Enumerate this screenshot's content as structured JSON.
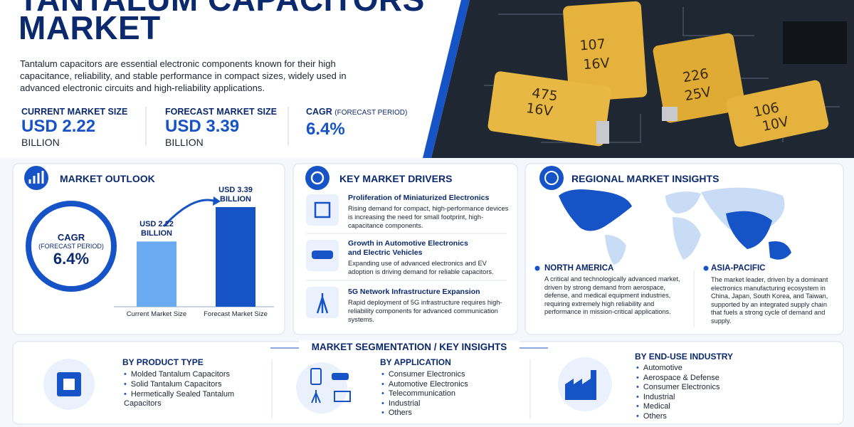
{
  "header": {
    "title_lines": [
      "TANTALUM CAPACITORS",
      "MARKET"
    ],
    "description": "Tantalum capacitors are essential electronic components known for their high capacitance, reliability, and stable performance in compact sizes, widely used in advanced electronic circuits and high-reliability applications.",
    "stats": [
      {
        "label": "CURRENT MARKET SIZE",
        "value": "USD 2.22",
        "unit": "BILLION"
      },
      {
        "label": "FORECAST MARKET SIZE",
        "value": "USD 3.39",
        "unit": "BILLION"
      },
      {
        "label": "CAGR",
        "note": "(FORECAST PERIOD)",
        "value": "6.4%"
      }
    ]
  },
  "photo": {
    "capacitors": [
      {
        "code": "107",
        "voltage": "16V"
      },
      {
        "code": "226",
        "voltage": "25V"
      },
      {
        "code": "475",
        "voltage": "16V"
      },
      {
        "code": "106",
        "voltage": "10V"
      }
    ]
  },
  "outlook": {
    "title": "MARKET OUTLOOK",
    "cagr": {
      "label": "CAGR",
      "period": "(FORECAST PERIOD)",
      "value": "6.4%"
    },
    "chart": {
      "type": "bar",
      "categories": [
        "Current Market Size",
        "Forecast Market Size"
      ],
      "values": [
        2.22,
        3.39
      ],
      "value_labels": [
        "USD 2.22 BILLION",
        "USD 3.39 BILLION"
      ],
      "colors": [
        "#6aaaf0",
        "#1553c6"
      ]
    }
  },
  "drivers": {
    "title": "KEY MARKET DRIVERS",
    "items": [
      {
        "title": "Proliferation of Miniaturized Electronics",
        "text": "Rising demand for compact, high-performance devices is increasing the need for small footprint, high-capacitance components."
      },
      {
        "title": "Growth in Automotive Electronics and Electric Vehicles",
        "text": "Expanding use of advanced electronics and EV adoption is driving demand for reliable capacitors."
      },
      {
        "title": "5G Network Infrastructure Expansion",
        "text": "Rapid deployment of 5G infrastructure requires high-reliability components for advanced communication systems."
      }
    ]
  },
  "regional": {
    "title": "REGIONAL MARKET INSIGHTS",
    "regions": [
      {
        "name": "NORTH AMERICA",
        "text": "A critical and technologically advanced market, driven by strong demand from aerospace, defense, and medical equipment industries, requiring extremely high reliability and performance in mission-critical applications."
      },
      {
        "name": "ASIA-PACIFIC",
        "text": "The market leader, driven by a dominant electronics manufacturing ecosystem in China, Japan, South Korea, and Taiwan, supported by an integrated supply chain that fuels a strong cycle of demand and supply."
      }
    ]
  },
  "segmentation": {
    "title": "MARKET SEGMENTATION / KEY INSIGHTS",
    "groups": [
      {
        "title": "BY PRODUCT TYPE",
        "items": [
          "Molded Tantalum Capacitors",
          "Solid Tantalum Capacitors",
          "Hermetically Sealed Tantalum Capacitors"
        ]
      },
      {
        "title": "BY APPLICATION",
        "items": [
          "Consumer Electronics",
          "Automotive Electronics",
          "Telecommunication",
          "Industrial",
          "Others"
        ]
      },
      {
        "title": "BY END-USE INDUSTRY",
        "items": [
          "Automotive",
          "Aerospace & Defense",
          "Consumer Electronics",
          "Industrial",
          "Medical",
          "Others"
        ]
      }
    ]
  }
}
